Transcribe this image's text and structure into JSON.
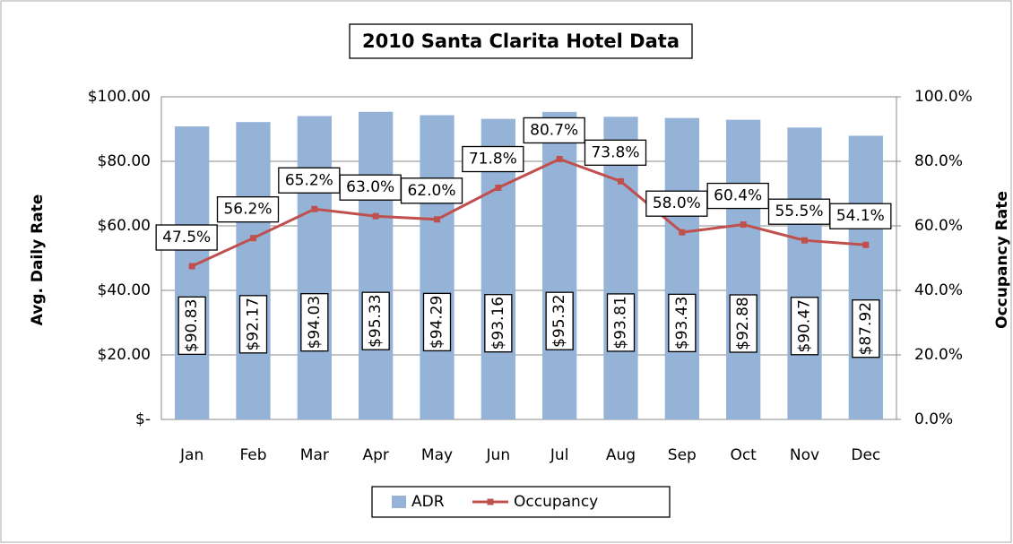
{
  "chart_data": {
    "type": "bar_line",
    "title": "2010 Santa Clarita Hotel Data",
    "y_label": "Avg. Daily Rate",
    "y2_label": "Occupancy Rate",
    "categories": [
      "Jan",
      "Feb",
      "Mar",
      "Apr",
      "May",
      "Jun",
      "Jul",
      "Aug",
      "Sep",
      "Oct",
      "Nov",
      "Dec"
    ],
    "series": [
      {
        "name": "ADR",
        "type": "bar",
        "color": "#95b3d7",
        "values": [
          90.83,
          92.17,
          94.03,
          95.33,
          94.29,
          93.16,
          95.32,
          93.81,
          93.43,
          92.88,
          90.47,
          87.92
        ],
        "value_labels": [
          "$90.83",
          "$92.17",
          "$94.03",
          "$95.33",
          "$94.29",
          "$93.16",
          "$95.32",
          "$93.81",
          "$93.43",
          "$92.88",
          "$90.47",
          "$87.92"
        ]
      },
      {
        "name": "Occupancy",
        "type": "line",
        "axis": "y2",
        "color": "#c0504d",
        "values": [
          47.5,
          56.2,
          65.2,
          63.0,
          62.0,
          71.8,
          80.7,
          73.8,
          58.0,
          60.4,
          55.5,
          54.1
        ],
        "value_labels": [
          "47.5%",
          "56.2%",
          "65.2%",
          "63.0%",
          "62.0%",
          "71.8%",
          "80.7%",
          "73.8%",
          "58.0%",
          "60.4%",
          "55.5%",
          "54.1%"
        ]
      }
    ],
    "ylim": [
      0,
      100
    ],
    "yticks": [
      {
        "value": 0,
        "label": "$-"
      },
      {
        "value": 20,
        "label": "$20.00"
      },
      {
        "value": 40,
        "label": "$40.00"
      },
      {
        "value": 60,
        "label": "$60.00"
      },
      {
        "value": 80,
        "label": "$80.00"
      },
      {
        "value": 100,
        "label": "$100.00"
      }
    ],
    "y2lim": [
      0,
      100
    ],
    "y2ticks": [
      {
        "value": 0,
        "label": "0.0%"
      },
      {
        "value": 20,
        "label": "20.0%"
      },
      {
        "value": 40,
        "label": "40.0%"
      },
      {
        "value": 60,
        "label": "60.0%"
      },
      {
        "value": 80,
        "label": "80.0%"
      },
      {
        "value": 100,
        "label": "100.0%"
      }
    ],
    "grid": true,
    "legend": "bottom"
  }
}
